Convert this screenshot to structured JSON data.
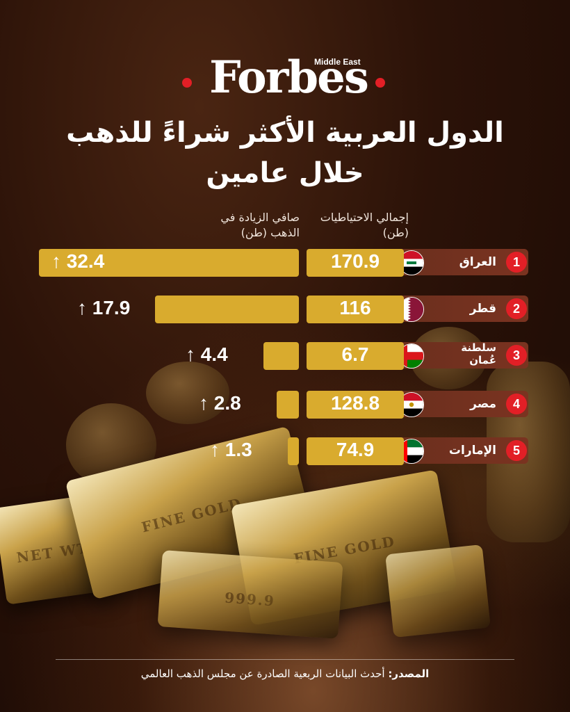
{
  "brand": {
    "logo": "Forbes",
    "sub": "Middle East",
    "accent_color": "#e21f26",
    "gold_color": "#d9ab2e"
  },
  "title": {
    "line1": "الدول العربية الأكثر شراءً للذهب",
    "line2": "خلال عامين"
  },
  "columns": {
    "reserves": "إجمالي الاحتياطيات (طن)",
    "increase": "صافي الزيادة في الذهب (طن)"
  },
  "rows": [
    {
      "rank": "1",
      "country": "العراق",
      "reserve_display": "170.9",
      "increase_display": "32.4",
      "flag_icon": "iraq-flag-icon"
    },
    {
      "rank": "2",
      "country": "قطر",
      "reserve_display": "116",
      "increase_display": "17.9",
      "flag_icon": "qatar-flag-icon"
    },
    {
      "rank": "3",
      "country": "سلطنة عُمان",
      "reserve_display": "6.7",
      "increase_display": "4.4",
      "flag_icon": "oman-flag-icon"
    },
    {
      "rank": "4",
      "country": "مصر",
      "reserve_display": "128.8",
      "increase_display": "2.8",
      "flag_icon": "egypt-flag-icon"
    },
    {
      "rank": "5",
      "country": "الإمارات",
      "reserve_display": "74.9",
      "increase_display": "1.3",
      "flag_icon": "uae-flag-icon"
    }
  ],
  "chart_data": {
    "type": "bar",
    "title": "الدول العربية الأكثر شراءً للذهب خلال عامين",
    "categories": [
      "العراق",
      "قطر",
      "سلطنة عُمان",
      "مصر",
      "الإمارات"
    ],
    "series": [
      {
        "name": "إجمالي الاحتياطيات (طن)",
        "values": [
          170.9,
          116,
          6.7,
          128.8,
          74.9
        ]
      },
      {
        "name": "صافي الزيادة في الذهب (طن)",
        "values": [
          32.4,
          17.9,
          4.4,
          2.8,
          1.3
        ]
      }
    ],
    "orientation": "horizontal",
    "direction": "right-to-left"
  },
  "image_engravings": [
    "FINE GOLD",
    "NET WT",
    "999.9"
  ],
  "footer": {
    "label": "المصدر:",
    "text": "أحدث البيانات الربعية الصادرة عن مجلس الذهب العالمي"
  }
}
